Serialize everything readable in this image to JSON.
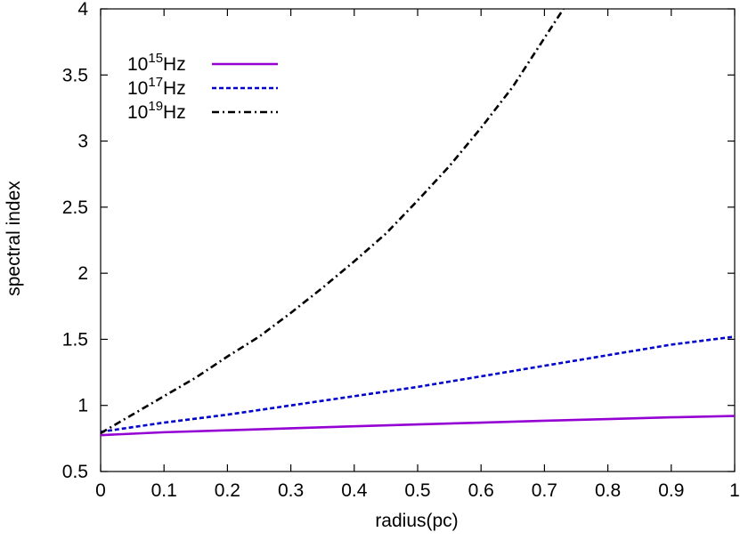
{
  "chart_data": {
    "type": "line",
    "title": "",
    "xlabel": "radius(pc)",
    "ylabel": "spectral index",
    "xlim": [
      0,
      1
    ],
    "ylim": [
      0.5,
      4
    ],
    "x_ticks": [
      0,
      0.1,
      0.2,
      0.3,
      0.4,
      0.5,
      0.6,
      0.7,
      0.8,
      0.9,
      1
    ],
    "x_tick_labels": [
      "0",
      "0.1",
      "0.2",
      "0.3",
      "0.4",
      "0.5",
      "0.6",
      "0.7",
      "0.8",
      "0.9",
      "1"
    ],
    "y_ticks": [
      0.5,
      1,
      1.5,
      2,
      2.5,
      3,
      3.5,
      4
    ],
    "y_tick_labels": [
      "0.5",
      "1",
      "1.5",
      "2",
      "2.5",
      "3",
      "3.5",
      "4"
    ],
    "grid": false,
    "legend_position": "top-left",
    "series": [
      {
        "name_base": "10",
        "name_exp": "15",
        "name_unit": "Hz",
        "color": "#9400d3",
        "style": "solid",
        "x": [
          0,
          0.1,
          0.2,
          0.3,
          0.4,
          0.5,
          0.6,
          0.7,
          0.8,
          0.9,
          1.0
        ],
        "y": [
          0.775,
          0.797,
          0.812,
          0.827,
          0.842,
          0.856,
          0.87,
          0.884,
          0.897,
          0.91,
          0.92
        ]
      },
      {
        "name_base": "10",
        "name_exp": "17",
        "name_unit": "Hz",
        "color": "#0000cc",
        "style": "dashed",
        "x": [
          0,
          0.1,
          0.2,
          0.3,
          0.4,
          0.5,
          0.6,
          0.7,
          0.8,
          0.9,
          1.0
        ],
        "y": [
          0.8,
          0.87,
          0.93,
          1.0,
          1.07,
          1.14,
          1.22,
          1.3,
          1.38,
          1.46,
          1.52
        ]
      },
      {
        "name_base": "10",
        "name_exp": "19",
        "name_unit": "Hz",
        "color": "#000000",
        "style": "dash-dot",
        "x": [
          0,
          0.05,
          0.1,
          0.15,
          0.2,
          0.25,
          0.3,
          0.35,
          0.4,
          0.45,
          0.5,
          0.55,
          0.6,
          0.65,
          0.7,
          0.73
        ],
        "y": [
          0.79,
          0.93,
          1.07,
          1.21,
          1.37,
          1.52,
          1.7,
          1.89,
          2.09,
          2.3,
          2.55,
          2.81,
          3.1,
          3.41,
          3.78,
          4.0
        ]
      }
    ]
  }
}
